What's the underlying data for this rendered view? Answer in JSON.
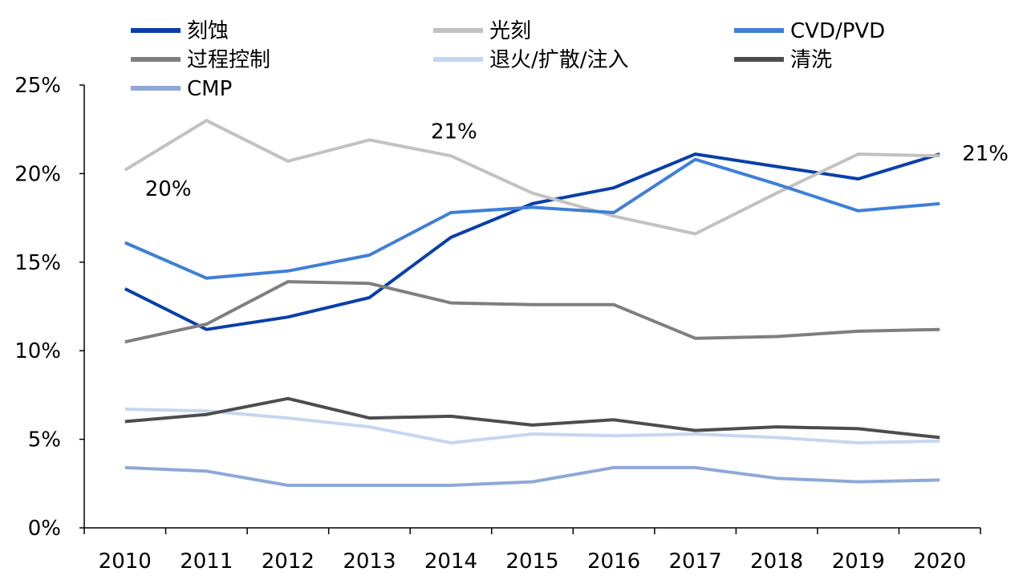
{
  "chart_data": {
    "type": "line",
    "title": "",
    "xlabel": "",
    "ylabel": "",
    "categories": [
      "2010",
      "2011",
      "2012",
      "2013",
      "2014",
      "2015",
      "2016",
      "2017",
      "2018",
      "2019",
      "2020"
    ],
    "ylim": [
      0,
      25
    ],
    "yticks": [
      "0%",
      "5%",
      "10%",
      "15%",
      "20%",
      "25%"
    ],
    "grid": false,
    "legend_position": "top",
    "series": [
      {
        "name": "刻蚀",
        "color": "#0a3fa8",
        "values": [
          13.5,
          11.2,
          11.9,
          13.0,
          16.4,
          18.3,
          19.2,
          21.1,
          20.4,
          19.7,
          21.1
        ]
      },
      {
        "name": "光刻",
        "color": "#c2c2c2",
        "values": [
          20.2,
          23.0,
          20.7,
          21.9,
          21.0,
          18.9,
          17.6,
          16.6,
          18.9,
          21.1,
          21.0
        ]
      },
      {
        "name": "CVD/PVD",
        "color": "#3f7fd6",
        "values": [
          16.1,
          14.1,
          14.5,
          15.4,
          17.8,
          18.1,
          17.8,
          20.8,
          19.4,
          17.9,
          18.3
        ]
      },
      {
        "name": "过程控制",
        "color": "#7f7f7f",
        "values": [
          10.5,
          11.5,
          13.9,
          13.8,
          12.7,
          12.6,
          12.6,
          10.7,
          10.8,
          11.1,
          11.2
        ]
      },
      {
        "name": "退火/扩散/注入",
        "color": "#c6d6f0",
        "values": [
          6.7,
          6.6,
          6.2,
          5.7,
          4.8,
          5.3,
          5.2,
          5.3,
          5.1,
          4.8,
          4.9
        ]
      },
      {
        "name": "清洗",
        "color": "#4d4d4d",
        "values": [
          6.0,
          6.4,
          7.3,
          6.2,
          6.3,
          5.8,
          6.1,
          5.5,
          5.7,
          5.6,
          5.1
        ]
      },
      {
        "name": "CMP",
        "color": "#8ea8d8",
        "values": [
          3.4,
          3.2,
          2.4,
          2.4,
          2.4,
          2.6,
          3.4,
          3.4,
          2.8,
          2.6,
          2.7
        ]
      }
    ],
    "annotations": [
      {
        "text": "20%",
        "category": "2010",
        "series": "光刻"
      },
      {
        "text": "21%",
        "category": "2014",
        "series": "光刻"
      },
      {
        "text": "21%",
        "category": "2020",
        "series": "刻蚀"
      }
    ]
  }
}
